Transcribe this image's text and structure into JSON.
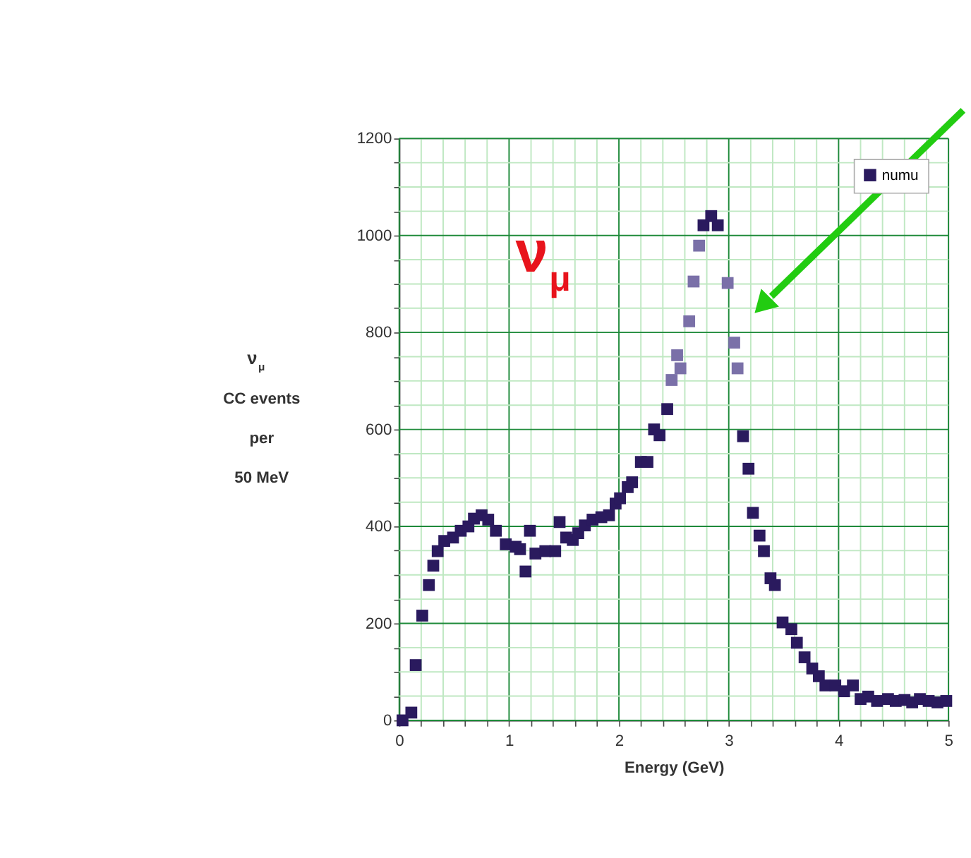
{
  "chart_data": {
    "type": "scatter",
    "xlabel": "Energy (GeV)",
    "ylabel": "ν$_{μ}$\nCC events\nper\n50 MeV",
    "xlim": [
      0,
      5
    ],
    "ylim": [
      0,
      1200
    ],
    "xticks": [
      0,
      {
        "value": 0.2,
        "label": null
      },
      {
        "value": 0.4,
        "label": null
      },
      {
        "value": 0.6,
        "label": null
      },
      {
        "value": 0.8,
        "label": null
      },
      1,
      {
        "value": 1.2,
        "label": null
      },
      {
        "value": 1.4,
        "label": null
      },
      {
        "value": 1.6,
        "label": null
      },
      {
        "value": 1.8,
        "label": null
      },
      2,
      {
        "value": 2.2,
        "label": null
      },
      {
        "value": 2.4,
        "label": null
      },
      {
        "value": 2.6,
        "label": null
      },
      {
        "value": 2.8,
        "label": null
      },
      3,
      {
        "value": 3.2,
        "label": null
      },
      {
        "value": 3.4,
        "label": null
      },
      {
        "value": 3.6,
        "label": null
      },
      {
        "value": 3.8,
        "label": null
      },
      4,
      {
        "value": 4.2,
        "label": null
      },
      {
        "value": 4.4,
        "label": null
      },
      {
        "value": 4.6,
        "label": null
      },
      {
        "value": 4.8,
        "label": null
      },
      5
    ],
    "yticks": [
      0,
      {
        "value": 50,
        "label": null
      },
      {
        "value": 100,
        "label": null
      },
      {
        "value": 150,
        "label": null
      },
      200,
      {
        "value": 250,
        "label": null
      },
      {
        "value": 300,
        "label": null
      },
      {
        "value": 350,
        "label": null
      },
      400,
      {
        "value": 450,
        "label": null
      },
      {
        "value": 500,
        "label": null
      },
      {
        "value": 550,
        "label": null
      },
      600,
      {
        "value": 650,
        "label": null
      },
      {
        "value": 700,
        "label": null
      },
      {
        "value": 750,
        "label": null
      },
      800,
      {
        "value": 850,
        "label": null
      },
      {
        "value": 900,
        "label": null
      },
      {
        "value": 950,
        "label": null
      },
      1000,
      {
        "value": 1050,
        "label": null
      },
      {
        "value": 1100,
        "label": null
      },
      {
        "value": 1150,
        "label": null
      },
      1200
    ],
    "grid": true,
    "legend": "top right",
    "marker": "square",
    "annotations": [
      "ν$_{μ}$"
    ],
    "series": [
      {
        "name": "numu",
        "color": "#2a1a5e",
        "x": [
          0.03,
          0.11,
          0.15,
          0.21,
          0.27,
          0.31,
          0.35,
          0.41,
          0.49,
          0.56,
          0.63,
          0.68,
          0.75,
          0.81,
          0.88,
          0.97,
          1.06,
          1.1,
          1.15,
          1.19,
          1.24,
          1.33,
          1.42,
          1.46,
          1.52,
          1.58,
          1.63,
          1.69,
          1.76,
          1.84,
          1.91,
          1.97,
          2.01,
          2.08,
          2.12,
          2.2,
          2.26,
          2.32,
          2.37,
          2.44,
          2.77,
          2.84,
          2.9,
          3.13,
          3.18,
          3.22,
          3.28,
          3.32,
          3.38,
          3.42,
          3.49,
          3.57,
          3.62,
          3.69,
          3.76,
          3.82,
          3.88,
          3.97,
          4.05,
          4.13,
          4.2,
          4.27,
          4.35,
          4.45,
          4.52,
          4.6,
          4.67,
          4.74,
          4.82,
          4.9,
          4.98
        ],
        "values": [
          0,
          16,
          114,
          216,
          279,
          319,
          349,
          370,
          377,
          391,
          400,
          416,
          423,
          414,
          391,
          363,
          358,
          353,
          307,
          391,
          344,
          349,
          349,
          409,
          377,
          372,
          386,
          402,
          414,
          419,
          423,
          447,
          458,
          481,
          491,
          533,
          533,
          600,
          588,
          642,
          1021,
          1040,
          1021,
          586,
          519,
          428,
          381,
          349,
          293,
          279,
          202,
          188,
          160,
          130,
          107,
          91,
          72,
          72,
          60,
          72,
          44,
          49,
          40,
          44,
          40,
          42,
          37,
          44,
          40,
          37,
          40
        ]
      },
      {
        "color": "#7a70a8",
        "x": [
          2.48,
          2.53,
          2.56,
          2.64,
          2.68,
          2.73,
          2.99,
          3.05,
          3.08
        ],
        "values": [
          702,
          753,
          726,
          823,
          905,
          979,
          902,
          779,
          726
        ]
      }
    ]
  }
}
